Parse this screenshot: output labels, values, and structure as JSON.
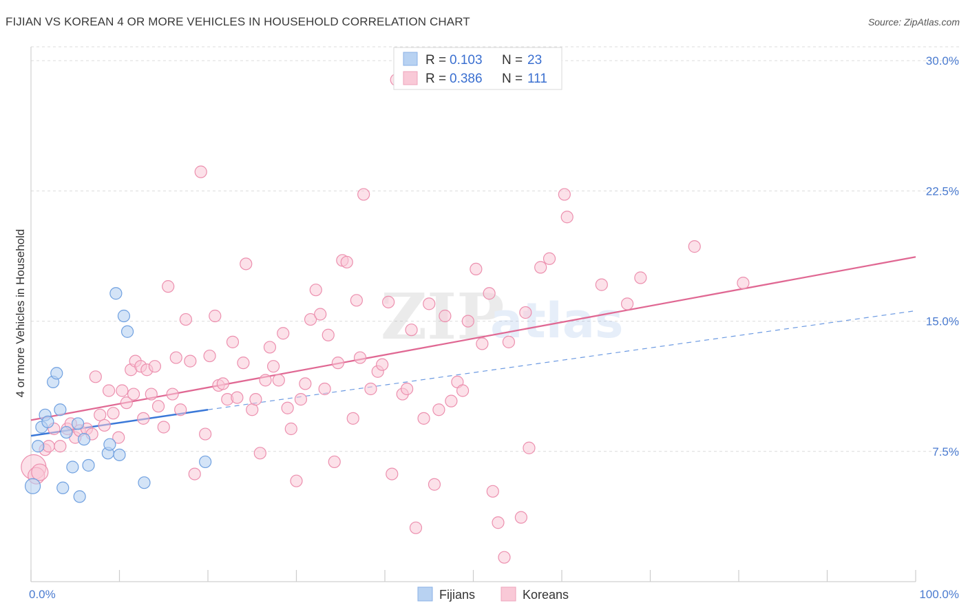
{
  "title": "FIJIAN VS KOREAN 4 OR MORE VEHICLES IN HOUSEHOLD CORRELATION CHART",
  "source": "Source: ZipAtlas.com",
  "watermark": {
    "zip": "ZIP",
    "atlas": "atlas"
  },
  "legend": {
    "rows": [
      {
        "r_label": "R =",
        "r_value": "0.103",
        "n_label": "N =",
        "n_value": "23",
        "color": "#a8c8f0"
      },
      {
        "r_label": "R =",
        "r_value": "0.386",
        "n_label": "N =",
        "n_value": "111",
        "color": "#f7b9cc"
      }
    ]
  },
  "bottom_legend": {
    "fijians": "Fijians",
    "koreans": "Koreans"
  },
  "chart_data": {
    "type": "scatter",
    "title": "FIJIAN VS KOREAN 4 OR MORE VEHICLES IN HOUSEHOLD CORRELATION CHART",
    "xlabel": "",
    "ylabel": "4 or more Vehicles in Household",
    "xlim": [
      0,
      100
    ],
    "ylim": [
      0,
      30.8
    ],
    "x_tick_labels": [
      "0.0%",
      "100.0%"
    ],
    "y_ticks": [
      7.5,
      15.0,
      22.5,
      30.0
    ],
    "y_tick_labels": [
      "7.5%",
      "15.0%",
      "22.5%",
      "30.0%"
    ],
    "grid": true,
    "colors": {
      "fijians": "#6fa0e0",
      "koreans": "#ec8fae",
      "fijians_fill": "#b8d2f2",
      "koreans_fill": "#f9c9d7",
      "fijians_line": "#3a78d8",
      "koreans_line": "#e06893"
    },
    "series": [
      {
        "name": "Fijians",
        "points": [
          [
            0.2,
            5.5
          ],
          [
            0.8,
            7.8
          ],
          [
            1.2,
            8.9
          ],
          [
            1.6,
            9.6
          ],
          [
            1.9,
            9.2
          ],
          [
            2.5,
            11.5
          ],
          [
            2.9,
            12.0
          ],
          [
            3.3,
            9.9
          ],
          [
            3.6,
            5.4
          ],
          [
            4.0,
            8.6
          ],
          [
            4.7,
            6.6
          ],
          [
            5.3,
            9.1
          ],
          [
            5.5,
            4.9
          ],
          [
            6.0,
            8.2
          ],
          [
            6.5,
            6.7
          ],
          [
            8.7,
            7.4
          ],
          [
            8.9,
            7.9
          ],
          [
            9.6,
            16.6
          ],
          [
            10.0,
            7.3
          ],
          [
            10.5,
            15.3
          ],
          [
            10.9,
            14.4
          ],
          [
            12.8,
            5.7
          ],
          [
            19.7,
            6.9
          ]
        ],
        "trend": {
          "x": [
            0,
            20
          ],
          "y": [
            8.4,
            9.9
          ],
          "dashed_extension": {
            "x": [
              20,
              100
            ],
            "y": [
              9.9,
              15.6
            ]
          }
        }
      },
      {
        "name": "Koreans",
        "points": [
          [
            0.3,
            6.6
          ],
          [
            0.6,
            6.1
          ],
          [
            1.0,
            6.3
          ],
          [
            1.6,
            7.6
          ],
          [
            2.0,
            7.8
          ],
          [
            2.6,
            8.8
          ],
          [
            3.3,
            7.8
          ],
          [
            4.1,
            8.8
          ],
          [
            4.5,
            9.1
          ],
          [
            5.0,
            8.3
          ],
          [
            5.5,
            8.7
          ],
          [
            6.3,
            8.8
          ],
          [
            6.9,
            8.5
          ],
          [
            7.3,
            11.8
          ],
          [
            7.8,
            9.6
          ],
          [
            8.3,
            9.0
          ],
          [
            8.8,
            11.0
          ],
          [
            9.3,
            9.7
          ],
          [
            9.9,
            8.3
          ],
          [
            10.3,
            11.0
          ],
          [
            10.8,
            10.3
          ],
          [
            11.3,
            12.2
          ],
          [
            11.6,
            10.8
          ],
          [
            11.8,
            12.7
          ],
          [
            12.4,
            12.4
          ],
          [
            12.7,
            9.4
          ],
          [
            13.1,
            12.2
          ],
          [
            13.6,
            10.8
          ],
          [
            14.0,
            12.4
          ],
          [
            14.4,
            10.1
          ],
          [
            15.0,
            8.9
          ],
          [
            15.5,
            17.0
          ],
          [
            16.0,
            10.8
          ],
          [
            16.4,
            12.9
          ],
          [
            16.9,
            9.9
          ],
          [
            17.5,
            15.1
          ],
          [
            18.0,
            12.7
          ],
          [
            18.5,
            6.2
          ],
          [
            19.2,
            23.6
          ],
          [
            19.7,
            8.5
          ],
          [
            20.2,
            13.0
          ],
          [
            20.8,
            15.3
          ],
          [
            21.2,
            11.3
          ],
          [
            21.7,
            11.4
          ],
          [
            22.2,
            10.5
          ],
          [
            22.8,
            13.8
          ],
          [
            23.3,
            10.6
          ],
          [
            24.0,
            12.6
          ],
          [
            24.3,
            18.3
          ],
          [
            25.0,
            9.9
          ],
          [
            25.4,
            10.5
          ],
          [
            25.9,
            7.4
          ],
          [
            26.5,
            11.6
          ],
          [
            27.0,
            13.5
          ],
          [
            27.4,
            12.4
          ],
          [
            28.0,
            11.6
          ],
          [
            28.5,
            14.3
          ],
          [
            29.0,
            10.0
          ],
          [
            29.4,
            8.8
          ],
          [
            30.0,
            5.8
          ],
          [
            30.5,
            10.5
          ],
          [
            31.0,
            11.4
          ],
          [
            31.6,
            15.1
          ],
          [
            32.2,
            16.8
          ],
          [
            32.7,
            15.4
          ],
          [
            33.2,
            11.1
          ],
          [
            33.6,
            14.2
          ],
          [
            34.3,
            6.9
          ],
          [
            34.7,
            12.6
          ],
          [
            35.2,
            18.5
          ],
          [
            35.7,
            18.4
          ],
          [
            36.4,
            9.4
          ],
          [
            36.8,
            16.2
          ],
          [
            37.2,
            12.9
          ],
          [
            37.6,
            22.3
          ],
          [
            38.4,
            11.1
          ],
          [
            39.2,
            12.1
          ],
          [
            39.7,
            12.5
          ],
          [
            40.4,
            16.1
          ],
          [
            40.8,
            6.2
          ],
          [
            41.3,
            28.9
          ],
          [
            42.0,
            10.8
          ],
          [
            42.5,
            11.1
          ],
          [
            43.0,
            14.5
          ],
          [
            43.5,
            3.1
          ],
          [
            44.4,
            9.4
          ],
          [
            45.0,
            16.0
          ],
          [
            45.6,
            5.6
          ],
          [
            46.1,
            9.9
          ],
          [
            46.8,
            15.3
          ],
          [
            47.5,
            10.4
          ],
          [
            48.2,
            11.5
          ],
          [
            48.8,
            11.0
          ],
          [
            49.4,
            15.0
          ],
          [
            50.3,
            18.0
          ],
          [
            51.0,
            13.7
          ],
          [
            51.8,
            16.6
          ],
          [
            52.2,
            5.2
          ],
          [
            52.8,
            3.4
          ],
          [
            53.5,
            1.4
          ],
          [
            54.0,
            13.8
          ],
          [
            55.4,
            3.7
          ],
          [
            55.9,
            15.5
          ],
          [
            56.3,
            7.7
          ],
          [
            57.6,
            18.1
          ],
          [
            58.6,
            18.6
          ],
          [
            60.3,
            22.3
          ],
          [
            60.6,
            21.0
          ],
          [
            64.5,
            17.1
          ],
          [
            67.4,
            16.0
          ],
          [
            68.9,
            17.5
          ],
          [
            75.0,
            19.3
          ],
          [
            80.5,
            17.2
          ]
        ],
        "trend": {
          "x": [
            0,
            100
          ],
          "y": [
            9.3,
            18.7
          ]
        }
      }
    ]
  }
}
